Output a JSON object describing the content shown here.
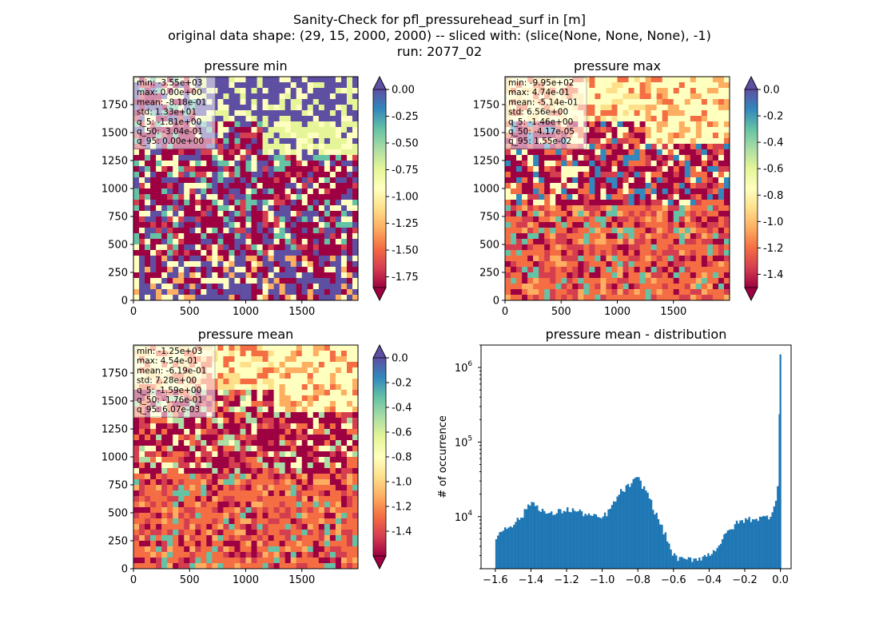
{
  "figure": {
    "title_lines": [
      "Sanity-Check for pfl_pressurehead_surf in [m]",
      "original data shape: (29, 15, 2000, 2000) -- sliced with: (slice(None, None, None), -1)",
      "run: 2077_02"
    ]
  },
  "colors": {
    "spectral": [
      "#9e0142",
      "#d53e4f",
      "#f46d43",
      "#fdae61",
      "#fee08b",
      "#ffffbf",
      "#e6f598",
      "#abdda4",
      "#66c2a5",
      "#3288bd",
      "#5e4fa2"
    ],
    "hist_bar": "#1f77b4"
  },
  "chart_data": [
    {
      "type": "heatmap",
      "title": "pressure min",
      "x_ticks": [
        "0",
        "500",
        "1000",
        "1500"
      ],
      "y_ticks": [
        "0",
        "250",
        "500",
        "750",
        "1000",
        "1250",
        "1500",
        "1750"
      ],
      "colorbar": {
        "vmin": -1.85,
        "vmax": 0.0,
        "extend": "both",
        "ticks": [
          "0.00",
          "-0.25",
          "-0.50",
          "-0.75",
          "-1.00",
          "-1.25",
          "-1.50",
          "-1.75"
        ]
      },
      "stats": [
        "min: -3.55e+03",
        "max: 0.00e+00",
        "mean: -8.18e-01",
        "std: 1.33e+01",
        "q_5: -1.81e+00",
        "q_50: -3.04e-01",
        "q_95: 0.00e+00"
      ]
    },
    {
      "type": "heatmap",
      "title": "pressure max",
      "x_ticks": [
        "0",
        "500",
        "1000",
        "1500"
      ],
      "y_ticks": [
        "0",
        "250",
        "500",
        "750",
        "1000",
        "1250",
        "1500",
        "1750"
      ],
      "colorbar": {
        "vmin": -1.5,
        "vmax": 0.0,
        "extend": "both",
        "ticks": [
          "0.0",
          "-0.2",
          "-0.4",
          "-0.6",
          "-0.8",
          "-1.0",
          "-1.2",
          "-1.4"
        ]
      },
      "stats": [
        "min: -9.95e+02",
        "max: 4.74e-01",
        "mean: -5.14e-01",
        "std: 6.56e+00",
        "q_5: -1.46e+00",
        "q_50: -4.17e-05",
        "q_95: 1.55e-02"
      ]
    },
    {
      "type": "heatmap",
      "title": "pressure mean",
      "x_ticks": [
        "0",
        "500",
        "1000",
        "1500"
      ],
      "y_ticks": [
        "0",
        "250",
        "500",
        "750",
        "1000",
        "1250",
        "1500",
        "1750"
      ],
      "colorbar": {
        "vmin": -1.6,
        "vmax": 0.0,
        "extend": "both",
        "ticks": [
          "0.0",
          "-0.2",
          "-0.4",
          "-0.6",
          "-0.8",
          "-1.0",
          "-1.2",
          "-1.4"
        ]
      },
      "stats": [
        "min: -1.25e+03",
        "max: 4.54e-01",
        "mean: -6.19e-01",
        "std: 7.28e+00",
        "q_5: -1.59e+00",
        "q_50: -1.76e-01",
        "q_95: 6.07e-03"
      ]
    },
    {
      "type": "bar",
      "title": "pressure mean - distribution",
      "ylabel": "# of occurrence",
      "yscale": "log",
      "xlim": [
        -1.68,
        0.06
      ],
      "ylim": [
        2000,
        2000000
      ],
      "x_ticks": [
        "-1.6",
        "-1.4",
        "-1.2",
        "-1.0",
        "-0.8",
        "-0.6",
        "-0.4",
        "-0.2",
        "0.0"
      ],
      "y_ticks": [
        {
          "base": "10",
          "exp": "4"
        },
        {
          "base": "10",
          "exp": "5"
        },
        {
          "base": "10",
          "exp": "6"
        }
      ],
      "x": [
        -1.6,
        -1.55,
        -1.5,
        -1.45,
        -1.4,
        -1.35,
        -1.3,
        -1.25,
        -1.2,
        -1.15,
        -1.1,
        -1.05,
        -1.0,
        -0.95,
        -0.9,
        -0.85,
        -0.8,
        -0.78,
        -0.75,
        -0.7,
        -0.65,
        -0.6,
        -0.55,
        -0.5,
        -0.45,
        -0.4,
        -0.35,
        -0.3,
        -0.25,
        -0.2,
        -0.15,
        -0.1,
        -0.05,
        -0.02,
        -0.01,
        0.0
      ],
      "values": [
        5000,
        7000,
        8000,
        10000,
        16000,
        13000,
        10500,
        11500,
        12500,
        12000,
        11000,
        10000,
        9500,
        13000,
        21000,
        26000,
        33000,
        27000,
        22000,
        11000,
        6000,
        3000,
        2600,
        2700,
        2800,
        3100,
        4000,
        6000,
        8000,
        9000,
        9500,
        9500,
        10500,
        20000,
        35000,
        1500000
      ]
    }
  ]
}
